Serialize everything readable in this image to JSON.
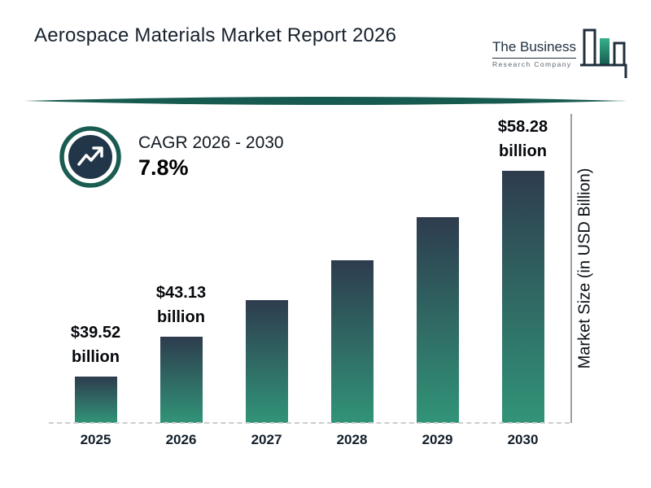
{
  "header": {
    "title": "Aerospace Materials Market Report 2026",
    "logo": {
      "name": "The Business Research Company",
      "line1": "The Business",
      "line2": "Research Company"
    }
  },
  "cagr": {
    "label": "CAGR 2026 - 2030",
    "value": "7.8%"
  },
  "chart_data": {
    "type": "bar",
    "title": "Aerospace Materials Market Report 2026",
    "categories": [
      "2025",
      "2026",
      "2027",
      "2028",
      "2029",
      "2030"
    ],
    "values": [
      39.52,
      43.13,
      46.49,
      50.12,
      54.03,
      58.28
    ],
    "data_labels": [
      "$39.52 billion",
      "$43.13 billion",
      null,
      null,
      null,
      "$58.28 billion"
    ],
    "xlabel": "",
    "ylabel": "Market Size (in USD Billion)",
    "legend": "none",
    "grid": false,
    "baseline_style": "dashed",
    "bar_gradient_top": "#2e3c4e",
    "bar_gradient_bottom": "#319478"
  },
  "colors": {
    "accent_teal": "#1a5c51",
    "dark_navy": "#22364a",
    "title_text": "#17222e"
  }
}
